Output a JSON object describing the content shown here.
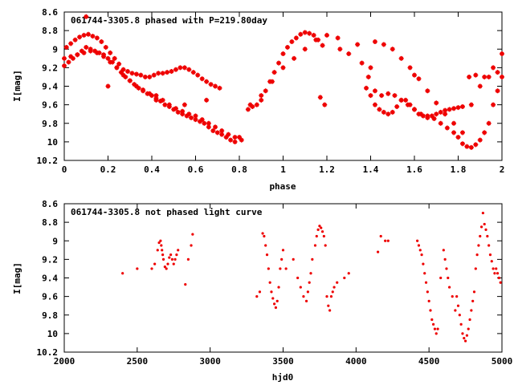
{
  "colors": {
    "points": "#ee0000",
    "frame": "#000000",
    "background": "#ffffff"
  },
  "chart_data": [
    {
      "type": "scatter",
      "title": "061744-3305.8 phased with P=219.80day",
      "xlabel": "phase",
      "ylabel": "I[mag]",
      "xlim": [
        0,
        2
      ],
      "ylim": [
        10.2,
        8.6
      ],
      "y_inverted": true,
      "grid": false,
      "xticks": [
        "0",
        "0.2",
        "0.4",
        "0.6",
        "0.8",
        "1",
        "1.2",
        "1.4",
        "1.6",
        "1.8",
        "2"
      ],
      "yticks": [
        "8.6",
        "8.8",
        "9",
        "9.2",
        "9.4",
        "9.6",
        "9.8",
        "10",
        "10.2"
      ],
      "x": [
        0.0,
        0.02,
        0.04,
        0.06,
        0.08,
        0.1,
        0.12,
        0.14,
        0.16,
        0.18,
        0.2,
        0.22,
        0.24,
        0.26,
        0.28,
        0.3,
        0.32,
        0.34,
        0.36,
        0.38,
        0.4,
        0.42,
        0.44,
        0.46,
        0.48,
        0.5,
        0.52,
        0.54,
        0.56,
        0.58,
        0.6,
        0.62,
        0.64,
        0.66,
        0.68,
        0.7,
        0.72,
        0.74,
        0.76,
        0.78,
        0.8,
        0.01,
        0.03,
        0.05,
        0.07,
        0.09,
        0.11,
        0.13,
        0.15,
        0.17,
        0.19,
        0.21,
        0.23,
        0.25,
        0.27,
        0.29,
        0.31,
        0.33,
        0.35,
        0.37,
        0.39,
        0.41,
        0.43,
        0.45,
        0.47,
        0.49,
        0.51,
        0.53,
        0.55,
        0.57,
        0.59,
        0.61,
        0.63,
        0.65,
        0.67,
        0.69,
        0.71,
        0.0,
        0.03,
        0.06,
        0.09,
        0.12,
        0.15,
        0.18,
        0.21,
        0.24,
        0.27,
        0.3,
        0.33,
        0.36,
        0.39,
        0.42,
        0.45,
        0.48,
        0.51,
        0.54,
        0.57,
        0.6,
        0.63,
        0.66,
        0.69,
        0.72,
        0.75,
        0.78,
        0.81,
        0.84,
        0.86,
        0.88,
        0.9,
        0.92,
        0.94,
        0.96,
        0.98,
        1.0,
        1.02,
        1.04,
        1.06,
        1.08,
        1.1,
        1.12,
        1.14,
        1.16,
        1.18,
        0.85,
        0.9,
        0.95,
        1.0,
        1.05,
        1.1,
        1.15,
        1.2,
        1.25,
        1.3,
        1.17,
        1.19,
        1.36,
        1.39,
        1.42,
        1.45,
        1.48,
        1.51,
        1.54,
        1.57,
        1.6,
        1.63,
        1.66,
        1.69,
        1.72,
        1.75,
        1.78,
        1.8,
        1.82,
        1.84,
        1.86,
        1.88,
        1.9,
        1.92,
        1.94,
        1.96,
        1.98,
        2.0,
        1.38,
        1.4,
        1.42,
        1.44,
        1.46,
        1.48,
        1.5,
        1.52,
        1.54,
        1.56,
        1.58,
        1.6,
        1.62,
        1.64,
        1.66,
        1.68,
        1.7,
        1.72,
        1.74,
        1.76,
        1.78,
        1.8,
        1.82,
        1.42,
        1.46,
        1.5,
        1.54,
        1.58,
        1.62,
        1.66,
        1.7,
        1.74,
        1.78,
        1.82,
        1.86,
        1.9,
        1.94,
        1.98,
        1.85,
        1.88,
        1.92,
        1.96,
        2.0,
        1.26,
        1.34,
        1.4,
        1.6,
        0.1,
        0.2,
        0.42,
        0.55,
        0.65
      ],
      "y": [
        9.18,
        9.14,
        9.1,
        9.06,
        9.02,
        8.98,
        9.0,
        9.02,
        9.04,
        9.06,
        9.1,
        9.14,
        9.2,
        9.25,
        9.3,
        9.34,
        9.38,
        9.42,
        9.45,
        9.48,
        9.5,
        9.53,
        9.56,
        9.6,
        9.62,
        9.65,
        9.68,
        9.7,
        9.72,
        9.74,
        9.76,
        9.78,
        9.8,
        9.84,
        9.88,
        9.9,
        9.92,
        9.95,
        9.98,
        10.0,
        9.95,
        8.98,
        8.94,
        8.9,
        8.87,
        8.85,
        8.84,
        8.86,
        8.88,
        8.92,
        8.98,
        9.04,
        9.1,
        9.16,
        9.22,
        9.24,
        9.26,
        9.27,
        9.28,
        9.3,
        9.3,
        9.28,
        9.26,
        9.26,
        9.25,
        9.24,
        9.22,
        9.2,
        9.2,
        9.22,
        9.25,
        9.28,
        9.32,
        9.35,
        9.38,
        9.4,
        9.42,
        9.1,
        9.08,
        9.06,
        9.04,
        9.02,
        9.04,
        9.08,
        9.14,
        9.2,
        9.28,
        9.34,
        9.4,
        9.44,
        9.48,
        9.5,
        9.55,
        9.6,
        9.64,
        9.67,
        9.7,
        9.72,
        9.76,
        9.8,
        9.84,
        9.88,
        9.92,
        9.95,
        9.98,
        9.65,
        9.62,
        9.6,
        9.55,
        9.45,
        9.35,
        9.25,
        9.15,
        9.05,
        8.98,
        8.92,
        8.88,
        8.84,
        8.82,
        8.83,
        8.85,
        8.9,
        8.96,
        9.6,
        9.5,
        9.35,
        9.2,
        9.1,
        9.0,
        8.9,
        8.85,
        8.88,
        9.05,
        9.52,
        9.6,
        9.15,
        9.3,
        9.45,
        9.5,
        9.48,
        9.5,
        9.55,
        9.6,
        9.65,
        9.7,
        9.72,
        9.75,
        9.8,
        9.85,
        9.9,
        9.95,
        10.02,
        10.05,
        10.06,
        10.03,
        9.98,
        9.9,
        9.8,
        9.6,
        9.45,
        9.3,
        9.42,
        9.5,
        9.6,
        9.65,
        9.68,
        9.7,
        9.68,
        9.62,
        9.55,
        9.55,
        9.6,
        9.65,
        9.7,
        9.72,
        9.74,
        9.72,
        9.7,
        9.68,
        9.66,
        9.65,
        9.64,
        9.63,
        9.62,
        8.92,
        8.95,
        9.0,
        9.1,
        9.2,
        9.32,
        9.45,
        9.58,
        9.7,
        9.8,
        9.9,
        9.6,
        9.4,
        9.3,
        9.25,
        9.3,
        9.28,
        9.3,
        9.2,
        9.05,
        9.0,
        8.95,
        9.2,
        9.28,
        8.65,
        9.4,
        9.55,
        9.6,
        9.55
      ]
    },
    {
      "type": "scatter",
      "title": "061744-3305.8 not phased light curve",
      "xlabel": "hjd0",
      "ylabel": "I[mag]",
      "xlim": [
        2000,
        5000
      ],
      "ylim": [
        10.2,
        8.6
      ],
      "y_inverted": true,
      "grid": false,
      "xticks": [
        "2000",
        "2500",
        "3000",
        "3500",
        "4000",
        "4500",
        "5000"
      ],
      "yticks": [
        "8.6",
        "8.8",
        "9",
        "9.2",
        "9.4",
        "9.6",
        "9.8",
        "10",
        "10.2"
      ],
      "x": [
        2400,
        2500,
        2600,
        2620,
        2640,
        2650,
        2660,
        2665,
        2670,
        2675,
        2680,
        2690,
        2700,
        2710,
        2720,
        2730,
        2740,
        2750,
        2760,
        2770,
        2780,
        2830,
        2850,
        2870,
        2880,
        3320,
        3340,
        3360,
        3370,
        3380,
        3390,
        3400,
        3410,
        3420,
        3430,
        3440,
        3450,
        3460,
        3470,
        3480,
        3490,
        3500,
        3520,
        3570,
        3600,
        3620,
        3640,
        3660,
        3670,
        3680,
        3690,
        3700,
        3720,
        3730,
        3740,
        3750,
        3760,
        3770,
        3780,
        3790,
        3800,
        3810,
        3820,
        3830,
        3840,
        3850,
        3870,
        3920,
        3950,
        4150,
        4170,
        4200,
        4220,
        4420,
        4430,
        4440,
        4450,
        4460,
        4470,
        4480,
        4490,
        4500,
        4510,
        4520,
        4530,
        4540,
        4550,
        4560,
        4580,
        4600,
        4610,
        4620,
        4630,
        4640,
        4660,
        4680,
        4690,
        4700,
        4710,
        4720,
        4730,
        4740,
        4750,
        4760,
        4770,
        4780,
        4790,
        4800,
        4810,
        4820,
        4830,
        4840,
        4850,
        4860,
        4870,
        4880,
        4890,
        4900,
        4910,
        4920,
        4930,
        4940,
        4950,
        4960,
        4970,
        4980,
        4990
      ],
      "y": [
        9.35,
        9.3,
        9.3,
        9.25,
        9.1,
        9.02,
        9.0,
        9.05,
        9.1,
        9.15,
        9.2,
        9.28,
        9.3,
        9.25,
        9.18,
        9.15,
        9.2,
        9.25,
        9.2,
        9.15,
        9.1,
        9.47,
        9.2,
        9.05,
        8.93,
        9.6,
        9.55,
        8.92,
        8.95,
        9.05,
        9.15,
        9.3,
        9.45,
        9.55,
        9.62,
        9.68,
        9.72,
        9.65,
        9.5,
        9.3,
        9.2,
        9.1,
        9.3,
        9.2,
        9.4,
        9.5,
        9.6,
        9.65,
        9.55,
        9.45,
        9.35,
        9.2,
        9.05,
        8.95,
        8.88,
        8.84,
        8.86,
        8.9,
        8.95,
        9.05,
        9.6,
        9.7,
        9.75,
        9.6,
        9.55,
        9.5,
        9.45,
        9.4,
        9.35,
        9.12,
        8.95,
        9.0,
        9.0,
        9.0,
        9.05,
        9.1,
        9.15,
        9.25,
        9.35,
        9.45,
        9.55,
        9.65,
        9.75,
        9.85,
        9.9,
        9.95,
        10.0,
        9.95,
        9.4,
        9.1,
        9.2,
        9.3,
        9.4,
        9.5,
        9.6,
        9.75,
        9.6,
        9.7,
        9.8,
        9.9,
        10.0,
        10.05,
        10.08,
        10.02,
        9.95,
        9.85,
        9.75,
        9.65,
        9.55,
        9.3,
        9.15,
        9.05,
        8.95,
        8.85,
        8.7,
        8.82,
        8.88,
        8.95,
        9.05,
        9.15,
        9.22,
        9.3,
        9.35,
        9.3,
        9.35,
        9.4,
        9.45
      ]
    }
  ]
}
